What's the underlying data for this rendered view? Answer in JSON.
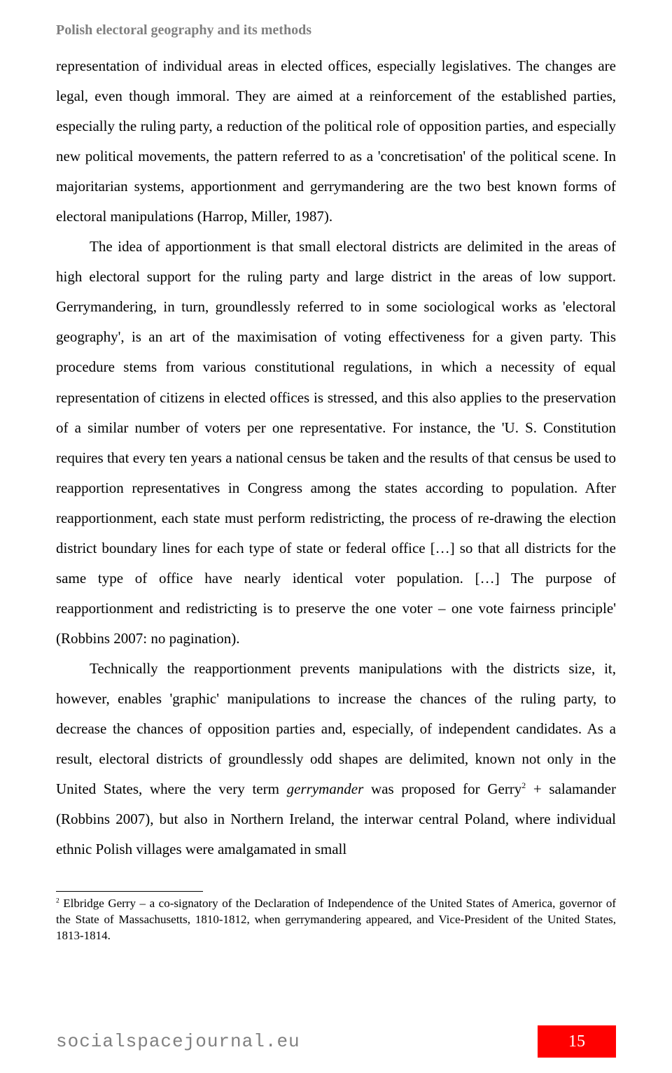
{
  "runningHead": "Polish electoral geography and its methods",
  "paragraphs": {
    "p1_a": "representation of individual areas in elected offices, especially legislatives. The changes are legal, even though immoral. They are aimed at a reinforcement of the established parties, especially the ruling party, a reduction of the political role of opposition parties, and especially new political movements, the pattern referred to as a 'concretisation' of the political scene. In majoritarian systems, apportionment and gerrymandering are the two best known forms of electoral manipulations (Harrop, Miller, 1987).",
    "p2_a": "The idea of apportionment is that small electoral districts are delimited in the areas of high electoral support for the ruling party and large district in the areas of low support. Gerrymandering, in turn, groundlessly referred to in some sociological works as 'electoral geography', is an art of the maximisation of voting effectiveness for a given party. This procedure stems from various constitutional regulations, in which a necessity of equal representation of citizens in elected offices is stressed, and this also applies to the preservation of a similar number of voters per one representative. For instance, the 'U. S. Constitution requires that every ten years a national census be taken and the results of that census be used to reapportion representatives in Congress among the states according to population. After reapportionment, each state must perform redistricting, the process of re-drawing the election district boundary lines for each type of state or federal office […] so that all districts for the same type of office have nearly identical voter population. […] The purpose of reapportionment and redistricting is to preserve the one voter – one vote fairness principle' (Robbins 2007: no pagination).",
    "p3_a": "Technically the reapportionment prevents manipulations with the districts size, it, however, enables 'graphic' manipulations to increase the chances of the ruling party, to decrease the chances of opposition parties and, especially, of independent candidates. As a result, electoral districts of groundlessly odd shapes are delimited, known not only in the United States,  where the very term ",
    "p3_em": "gerrymander",
    "p3_b": " was proposed for Gerry",
    "p3_fnmark": "2",
    "p3_c": " + salamander (Robbins 2007), but also in Northern Ireland, the interwar central Poland, where individual ethnic Polish villages were amalgamated in small"
  },
  "footnote": {
    "marker": "2",
    "text": " Elbridge Gerry – a co-signatory of the Declaration of Independence of the United States of America, governor of the State of Massachusetts, 1810-1812, when gerrymandering appeared, and Vice-President of the United States, 1813-1814."
  },
  "footer": {
    "site": "socialspacejournal.eu",
    "pageNumber": "15"
  },
  "style": {
    "accentColor": "#ff0000",
    "mutedColor": "#808080",
    "textColor": "#000000",
    "background": "#ffffff"
  }
}
